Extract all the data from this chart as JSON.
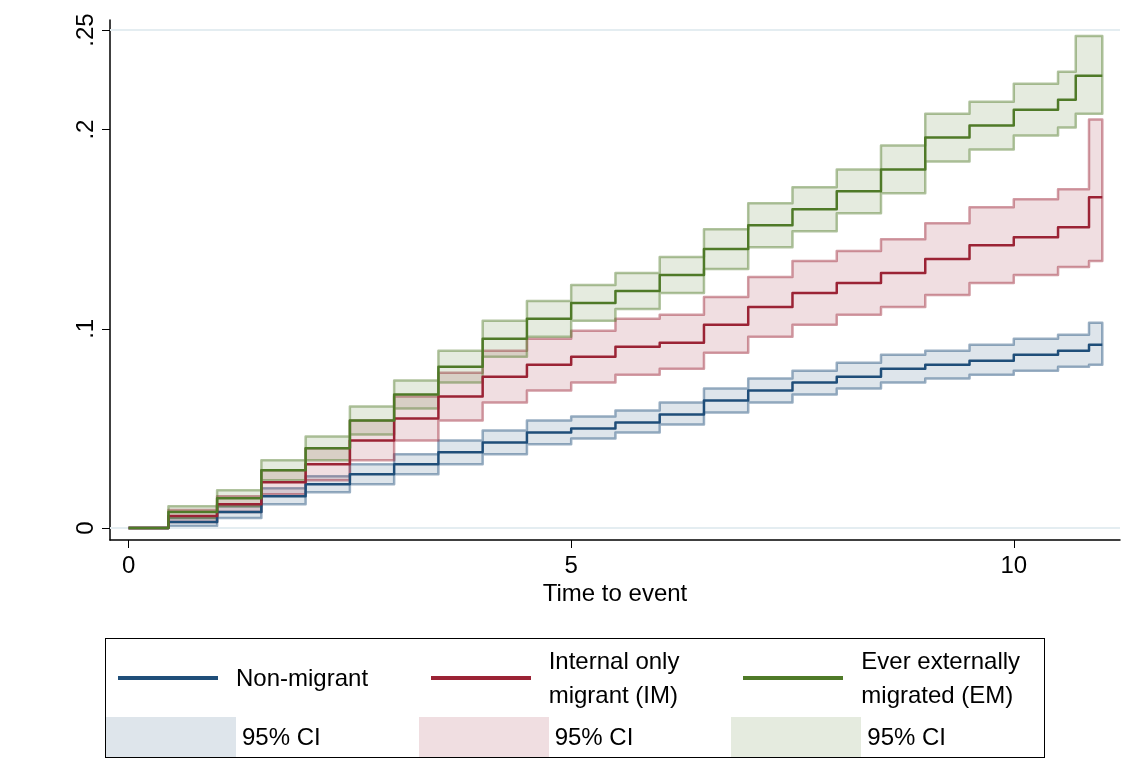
{
  "chart_data": {
    "type": "step",
    "xlabel": "Time to event",
    "x": [
      0,
      0.45,
      1,
      1.5,
      2,
      2.5,
      3,
      3.5,
      4,
      4.5,
      5,
      5.5,
      6,
      6.5,
      7,
      7.5,
      8,
      8.5,
      9,
      9.5,
      10,
      10.5,
      10.7,
      10.85,
      11
    ],
    "xlim": [
      -0.21,
      11.2
    ],
    "xticks": [
      0,
      5,
      10
    ],
    "ylim": [
      -0.006,
      0.255
    ],
    "yticks": [
      0,
      {
        "value": 0.1,
        "label": ".1"
      },
      {
        "value": 0.2,
        "label": ".2"
      },
      {
        "value": 0.25,
        "label": ".25"
      }
    ],
    "grid": false,
    "legend": "bottom",
    "line_style": "solid",
    "marker": "none",
    "annotations": [
      "95% CI",
      "95% CI",
      "95% CI"
    ],
    "ref_lines": [
      {
        "axis": "y",
        "value": 0,
        "color": "#e4edf1"
      },
      {
        "axis": "y",
        "value": 0.25,
        "color": "#e4edf1"
      }
    ],
    "series": [
      {
        "name": "Non-migrant",
        "color": "#1f4e79",
        "values": [
          0,
          0.003,
          0.008,
          0.016,
          0.022,
          0.027,
          0.032,
          0.038,
          0.043,
          0.048,
          0.05,
          0.053,
          0.057,
          0.064,
          0.069,
          0.073,
          0.076,
          0.08,
          0.082,
          0.084,
          0.087,
          0.089,
          0.089,
          0.092,
          0.092
        ],
        "lower": [
          0,
          0.001,
          0.005,
          0.012,
          0.018,
          0.022,
          0.027,
          0.032,
          0.037,
          0.042,
          0.045,
          0.048,
          0.052,
          0.058,
          0.063,
          0.067,
          0.07,
          0.073,
          0.075,
          0.077,
          0.079,
          0.081,
          0.081,
          0.082,
          0.082
        ],
        "upper": [
          0,
          0.005,
          0.011,
          0.02,
          0.026,
          0.032,
          0.037,
          0.044,
          0.049,
          0.054,
          0.056,
          0.059,
          0.063,
          0.07,
          0.075,
          0.079,
          0.083,
          0.087,
          0.089,
          0.092,
          0.095,
          0.097,
          0.097,
          0.103,
          0.103
        ]
      },
      {
        "name": "Internal only migrant (IM)",
        "color": "#9b2335",
        "values": [
          0,
          0.006,
          0.012,
          0.023,
          0.032,
          0.044,
          0.055,
          0.066,
          0.076,
          0.082,
          0.086,
          0.091,
          0.093,
          0.102,
          0.111,
          0.118,
          0.123,
          0.128,
          0.135,
          0.142,
          0.146,
          0.151,
          0.151,
          0.166,
          0.166
        ],
        "lower": [
          0,
          0.003,
          0.008,
          0.017,
          0.024,
          0.034,
          0.044,
          0.054,
          0.063,
          0.069,
          0.073,
          0.077,
          0.08,
          0.088,
          0.096,
          0.102,
          0.107,
          0.111,
          0.117,
          0.123,
          0.127,
          0.131,
          0.131,
          0.134,
          0.134
        ],
        "upper": [
          0,
          0.009,
          0.016,
          0.029,
          0.04,
          0.054,
          0.066,
          0.078,
          0.089,
          0.095,
          0.099,
          0.105,
          0.107,
          0.116,
          0.126,
          0.134,
          0.139,
          0.145,
          0.153,
          0.161,
          0.165,
          0.17,
          0.17,
          0.205,
          0.205
        ]
      },
      {
        "name": "Ever externally migrated (EM)",
        "color": "#4f7a28",
        "values": [
          0,
          0.008,
          0.015,
          0.029,
          0.04,
          0.054,
          0.067,
          0.081,
          0.095,
          0.105,
          0.113,
          0.119,
          0.127,
          0.14,
          0.152,
          0.16,
          0.169,
          0.18,
          0.196,
          0.202,
          0.21,
          0.215,
          0.227,
          0.227,
          0.227
        ],
        "lower": [
          0,
          0.005,
          0.011,
          0.024,
          0.034,
          0.047,
          0.06,
          0.073,
          0.086,
          0.096,
          0.104,
          0.11,
          0.118,
          0.13,
          0.141,
          0.149,
          0.158,
          0.168,
          0.184,
          0.19,
          0.197,
          0.201,
          0.208,
          0.208,
          0.208
        ],
        "upper": [
          0,
          0.011,
          0.019,
          0.034,
          0.046,
          0.061,
          0.074,
          0.089,
          0.104,
          0.114,
          0.122,
          0.128,
          0.136,
          0.15,
          0.163,
          0.171,
          0.18,
          0.192,
          0.208,
          0.214,
          0.223,
          0.229,
          0.247,
          0.247,
          0.247
        ]
      }
    ]
  }
}
